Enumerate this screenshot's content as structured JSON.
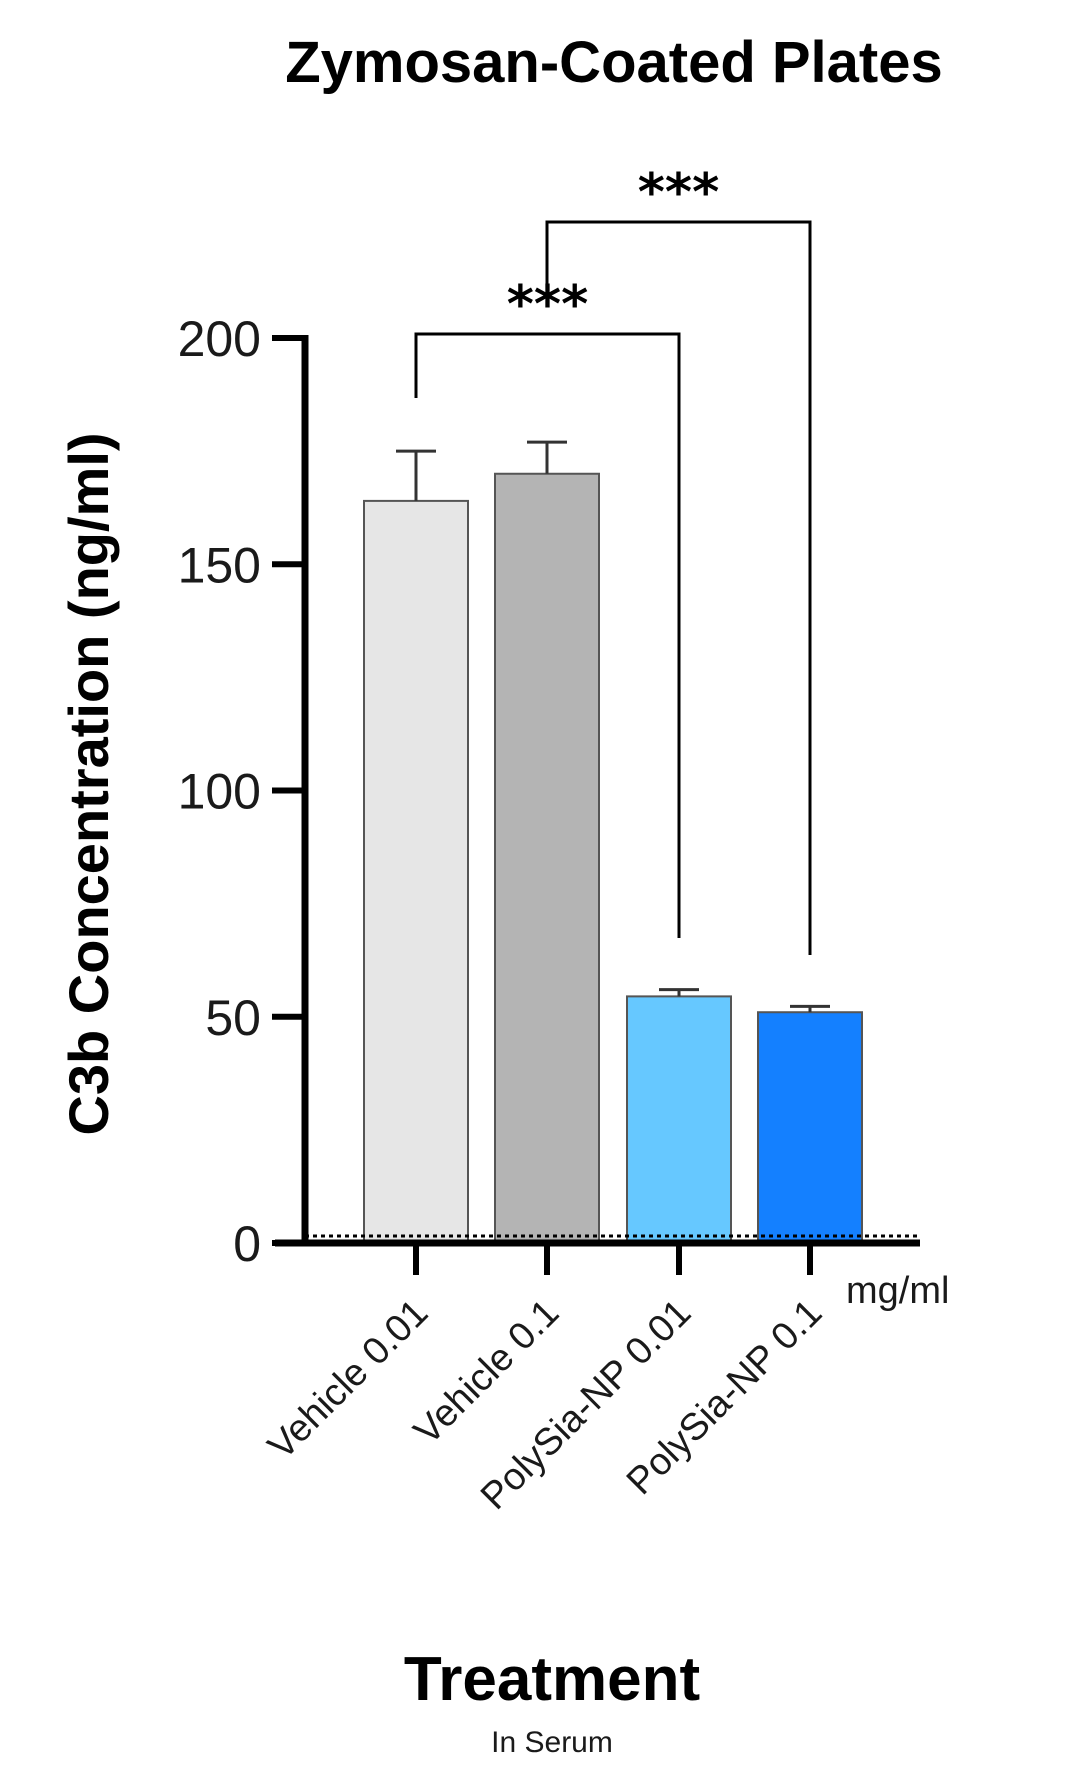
{
  "chart_data": {
    "type": "bar",
    "title": "Zymosan-Coated Plates",
    "ylabel": "C3b Concentration (ng/ml)",
    "xlabel": "Treatment",
    "xlabel_sub": "In Serum",
    "unit_label": "mg/ml",
    "ylim": [
      0,
      200
    ],
    "yticks": [
      0,
      50,
      100,
      150,
      200
    ],
    "categories": [
      "Vehicle 0.01",
      "Vehicle 0.1",
      "PolySia-NP 0.01",
      "PolySia-NP 0.1"
    ],
    "values": [
      164,
      170,
      54.5,
      51
    ],
    "errors": [
      11,
      7,
      1.5,
      1.3
    ],
    "colors": [
      "#e6e6e6",
      "#b4b4b4",
      "#66c8ff",
      "#1480ff"
    ],
    "significance": [
      {
        "from": 0,
        "to": 2,
        "label": "***"
      },
      {
        "from": 1,
        "to": 3,
        "label": "***"
      }
    ],
    "grid": false
  }
}
